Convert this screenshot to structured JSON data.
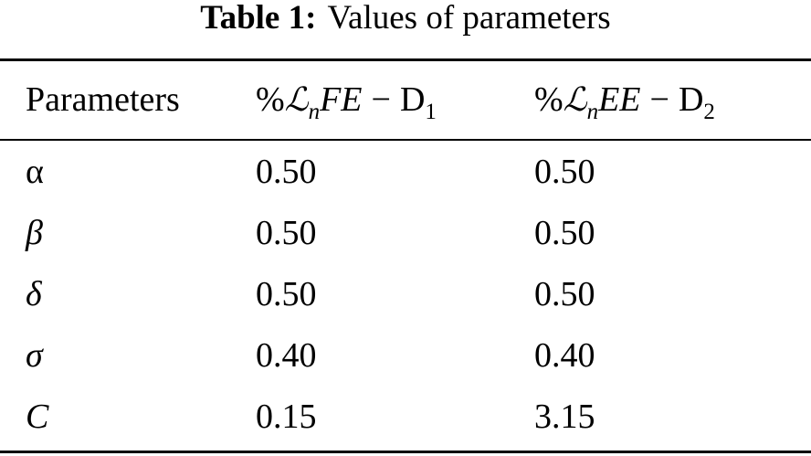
{
  "caption": {
    "label": "Table 1:",
    "text": "Values of parameters"
  },
  "table": {
    "header": {
      "parameters": "Parameters",
      "col1": {
        "percent": "%",
        "script": "ℒ",
        "sub": "n",
        "name": "FE",
        "minus": "−",
        "d": "D",
        "d_sub": "1"
      },
      "col2": {
        "percent": "%",
        "script": "ℒ",
        "sub": "n",
        "name": "EE",
        "minus": "−",
        "d": "D",
        "d_sub": "2"
      }
    },
    "rows": [
      {
        "symbol": "α",
        "col1": "0.50",
        "col2": "0.50"
      },
      {
        "symbol": "β",
        "col1": "0.50",
        "col2": "0.50"
      },
      {
        "symbol": "δ",
        "col1": "0.50",
        "col2": "0.50"
      },
      {
        "symbol": "σ",
        "col1": "0.40",
        "col2": "0.40"
      },
      {
        "symbol": "C",
        "col1": "0.15",
        "col2": "3.15"
      }
    ]
  }
}
